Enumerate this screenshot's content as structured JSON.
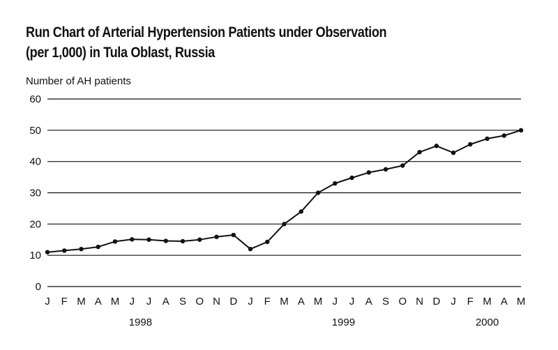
{
  "chart_data": {
    "type": "line",
    "title_line1": "Run Chart of Arterial Hypertension Patients under Observation",
    "title_line2": "(per 1,000) in Tula Oblast, Russia",
    "xlabel": "",
    "ylabel": "Number of AH patients",
    "ylim": [
      0,
      60
    ],
    "yticks": [
      "0",
      "10",
      "20",
      "30",
      "40",
      "50",
      "60"
    ],
    "grid": true,
    "categories": [
      "J",
      "F",
      "M",
      "A",
      "M",
      "J",
      "J",
      "A",
      "S",
      "O",
      "N",
      "D",
      "J",
      "F",
      "M",
      "A",
      "M",
      "J",
      "J",
      "A",
      "S",
      "O",
      "N",
      "D",
      "J",
      "F",
      "M",
      "A",
      "M"
    ],
    "years": [
      {
        "label": "1998",
        "start": 0,
        "end": 11
      },
      {
        "label": "1999",
        "start": 12,
        "end": 23
      },
      {
        "label": "2000",
        "start": 24,
        "end": 28
      }
    ],
    "series": [
      {
        "values": [
          11.0,
          11.5,
          12.0,
          12.7,
          14.4,
          15.1,
          15.0,
          14.6,
          14.5,
          15.0,
          15.9,
          16.5,
          12.0,
          14.3,
          20.0,
          24.0,
          30.0,
          33.0,
          34.8,
          36.5,
          37.5,
          38.7,
          43.0,
          45.0,
          42.8,
          45.5,
          47.3,
          48.3,
          50.0
        ]
      }
    ],
    "colors": {
      "line": "#111111",
      "grid": "#111111",
      "marker": "#111111"
    }
  }
}
